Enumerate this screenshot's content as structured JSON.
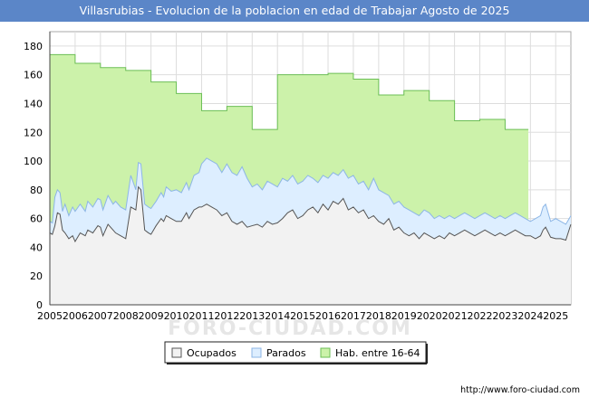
{
  "chart_data": {
    "type": "area",
    "title": "Villasrubias - Evolucion de la poblacion en edad de Trabajar Agosto de 2025",
    "xlabel": "",
    "ylabel": "",
    "ylim": [
      0,
      190
    ],
    "yticks": [
      0,
      20,
      40,
      60,
      80,
      100,
      120,
      140,
      160,
      180
    ],
    "xlim": [
      2005,
      2025.6
    ],
    "xticks": [
      2005,
      2006,
      2007,
      2008,
      2009,
      2010,
      2011,
      2012,
      2013,
      2014,
      2015,
      2016,
      2017,
      2018,
      2019,
      2020,
      2021,
      2022,
      2023,
      2024,
      2025
    ],
    "grid": true,
    "legend_position": "bottom",
    "series": [
      {
        "name": "Hab. entre 16-64",
        "color": "#ccf2aa",
        "line": "#6bbf55",
        "x": [
          2005,
          2006,
          2007,
          2008,
          2009,
          2010,
          2011,
          2012,
          2013,
          2014,
          2015,
          2016,
          2017,
          2018,
          2019,
          2020,
          2021,
          2022,
          2023,
          2023.92
        ],
        "values": [
          174,
          168,
          165,
          163,
          155,
          147,
          135,
          138,
          122,
          160,
          160,
          161,
          157,
          146,
          149,
          142,
          128,
          129,
          122,
          122
        ]
      },
      {
        "name": "Parados",
        "color": "#ddeeff",
        "line": "#8db6e6",
        "x": [
          2005,
          2005.1,
          2005.2,
          2005.3,
          2005.4,
          2005.5,
          2005.6,
          2005.75,
          2005.9,
          2006,
          2006.2,
          2006.4,
          2006.5,
          2006.7,
          2006.9,
          2007,
          2007.1,
          2007.3,
          2007.5,
          2007.6,
          2007.8,
          2008,
          2008.2,
          2008.4,
          2008.5,
          2008.6,
          2008.75,
          2008.9,
          2009,
          2009.2,
          2009.4,
          2009.5,
          2009.6,
          2009.8,
          2010,
          2010.2,
          2010.4,
          2010.5,
          2010.7,
          2010.9,
          2011,
          2011.2,
          2011.4,
          2011.6,
          2011.8,
          2012,
          2012.2,
          2012.4,
          2012.6,
          2012.8,
          2013,
          2013.2,
          2013.4,
          2013.6,
          2013.8,
          2014,
          2014.2,
          2014.4,
          2014.6,
          2014.8,
          2015,
          2015.2,
          2015.4,
          2015.6,
          2015.8,
          2016,
          2016.2,
          2016.4,
          2016.6,
          2016.8,
          2017,
          2017.2,
          2017.4,
          2017.6,
          2017.8,
          2018,
          2018.2,
          2018.4,
          2018.6,
          2018.8,
          2019,
          2019.2,
          2019.4,
          2019.6,
          2019.8,
          2020,
          2020.2,
          2020.4,
          2020.6,
          2020.8,
          2021,
          2021.2,
          2021.4,
          2021.6,
          2021.8,
          2022,
          2022.2,
          2022.4,
          2022.6,
          2022.8,
          2023,
          2023.2,
          2023.4,
          2023.6,
          2023.8,
          2024,
          2024.2,
          2024.4,
          2024.5,
          2024.6,
          2024.8,
          2025,
          2025.2,
          2025.4,
          2025.6
        ],
        "values": [
          58,
          57,
          75,
          80,
          78,
          65,
          70,
          62,
          68,
          65,
          70,
          65,
          72,
          68,
          74,
          73,
          66,
          76,
          70,
          72,
          68,
          66,
          90,
          80,
          99,
          98,
          70,
          68,
          67,
          72,
          78,
          75,
          82,
          79,
          80,
          78,
          85,
          80,
          90,
          92,
          98,
          102,
          100,
          98,
          92,
          98,
          92,
          90,
          96,
          88,
          82,
          84,
          80,
          86,
          84,
          82,
          88,
          86,
          90,
          84,
          86,
          90,
          88,
          85,
          90,
          88,
          92,
          90,
          94,
          88,
          90,
          84,
          86,
          80,
          88,
          80,
          78,
          76,
          70,
          72,
          68,
          66,
          64,
          62,
          66,
          64,
          60,
          62,
          60,
          62,
          60,
          62,
          64,
          62,
          60,
          62,
          64,
          62,
          60,
          62,
          60,
          62,
          64,
          62,
          60,
          58,
          60,
          62,
          68,
          70,
          58,
          60,
          58,
          56,
          62
        ]
      },
      {
        "name": "Ocupados",
        "color": "#f2f2f2",
        "line": "#555555",
        "x": [
          2005,
          2005.1,
          2005.2,
          2005.3,
          2005.4,
          2005.5,
          2005.6,
          2005.75,
          2005.9,
          2006,
          2006.2,
          2006.4,
          2006.5,
          2006.7,
          2006.9,
          2007,
          2007.1,
          2007.3,
          2007.5,
          2007.6,
          2007.8,
          2008,
          2008.2,
          2008.4,
          2008.5,
          2008.6,
          2008.75,
          2008.9,
          2009,
          2009.2,
          2009.4,
          2009.5,
          2009.6,
          2009.8,
          2010,
          2010.2,
          2010.4,
          2010.5,
          2010.7,
          2010.9,
          2011,
          2011.2,
          2011.4,
          2011.6,
          2011.8,
          2012,
          2012.2,
          2012.4,
          2012.6,
          2012.8,
          2013,
          2013.2,
          2013.4,
          2013.6,
          2013.8,
          2014,
          2014.2,
          2014.4,
          2014.6,
          2014.8,
          2015,
          2015.2,
          2015.4,
          2015.6,
          2015.8,
          2016,
          2016.2,
          2016.4,
          2016.6,
          2016.8,
          2017,
          2017.2,
          2017.4,
          2017.6,
          2017.8,
          2018,
          2018.2,
          2018.4,
          2018.6,
          2018.8,
          2019,
          2019.2,
          2019.4,
          2019.6,
          2019.8,
          2020,
          2020.2,
          2020.4,
          2020.6,
          2020.8,
          2021,
          2021.2,
          2021.4,
          2021.6,
          2021.8,
          2022,
          2022.2,
          2022.4,
          2022.6,
          2022.8,
          2023,
          2023.2,
          2023.4,
          2023.6,
          2023.8,
          2024,
          2024.2,
          2024.4,
          2024.5,
          2024.6,
          2024.8,
          2025,
          2025.2,
          2025.4,
          2025.6
        ],
        "values": [
          50,
          49,
          55,
          64,
          63,
          52,
          50,
          46,
          48,
          44,
          50,
          48,
          52,
          50,
          55,
          54,
          48,
          56,
          52,
          50,
          48,
          46,
          68,
          66,
          82,
          80,
          52,
          50,
          49,
          55,
          60,
          58,
          62,
          60,
          58,
          58,
          64,
          60,
          66,
          68,
          68,
          70,
          68,
          66,
          62,
          64,
          58,
          56,
          58,
          54,
          55,
          56,
          54,
          58,
          56,
          57,
          60,
          64,
          66,
          60,
          62,
          66,
          68,
          64,
          70,
          66,
          72,
          70,
          74,
          66,
          68,
          64,
          66,
          60,
          62,
          58,
          56,
          60,
          52,
          54,
          50,
          48,
          50,
          46,
          50,
          48,
          46,
          48,
          46,
          50,
          48,
          50,
          52,
          50,
          48,
          50,
          52,
          50,
          48,
          50,
          48,
          50,
          52,
          50,
          48,
          48,
          46,
          48,
          52,
          54,
          47,
          46,
          46,
          45,
          56
        ]
      }
    ],
    "legend": [
      "Ocupados",
      "Parados",
      "Hab. entre 16-64"
    ],
    "watermark": "FORO-CIUDAD.COM",
    "credit": "http://www.foro-ciudad.com"
  }
}
